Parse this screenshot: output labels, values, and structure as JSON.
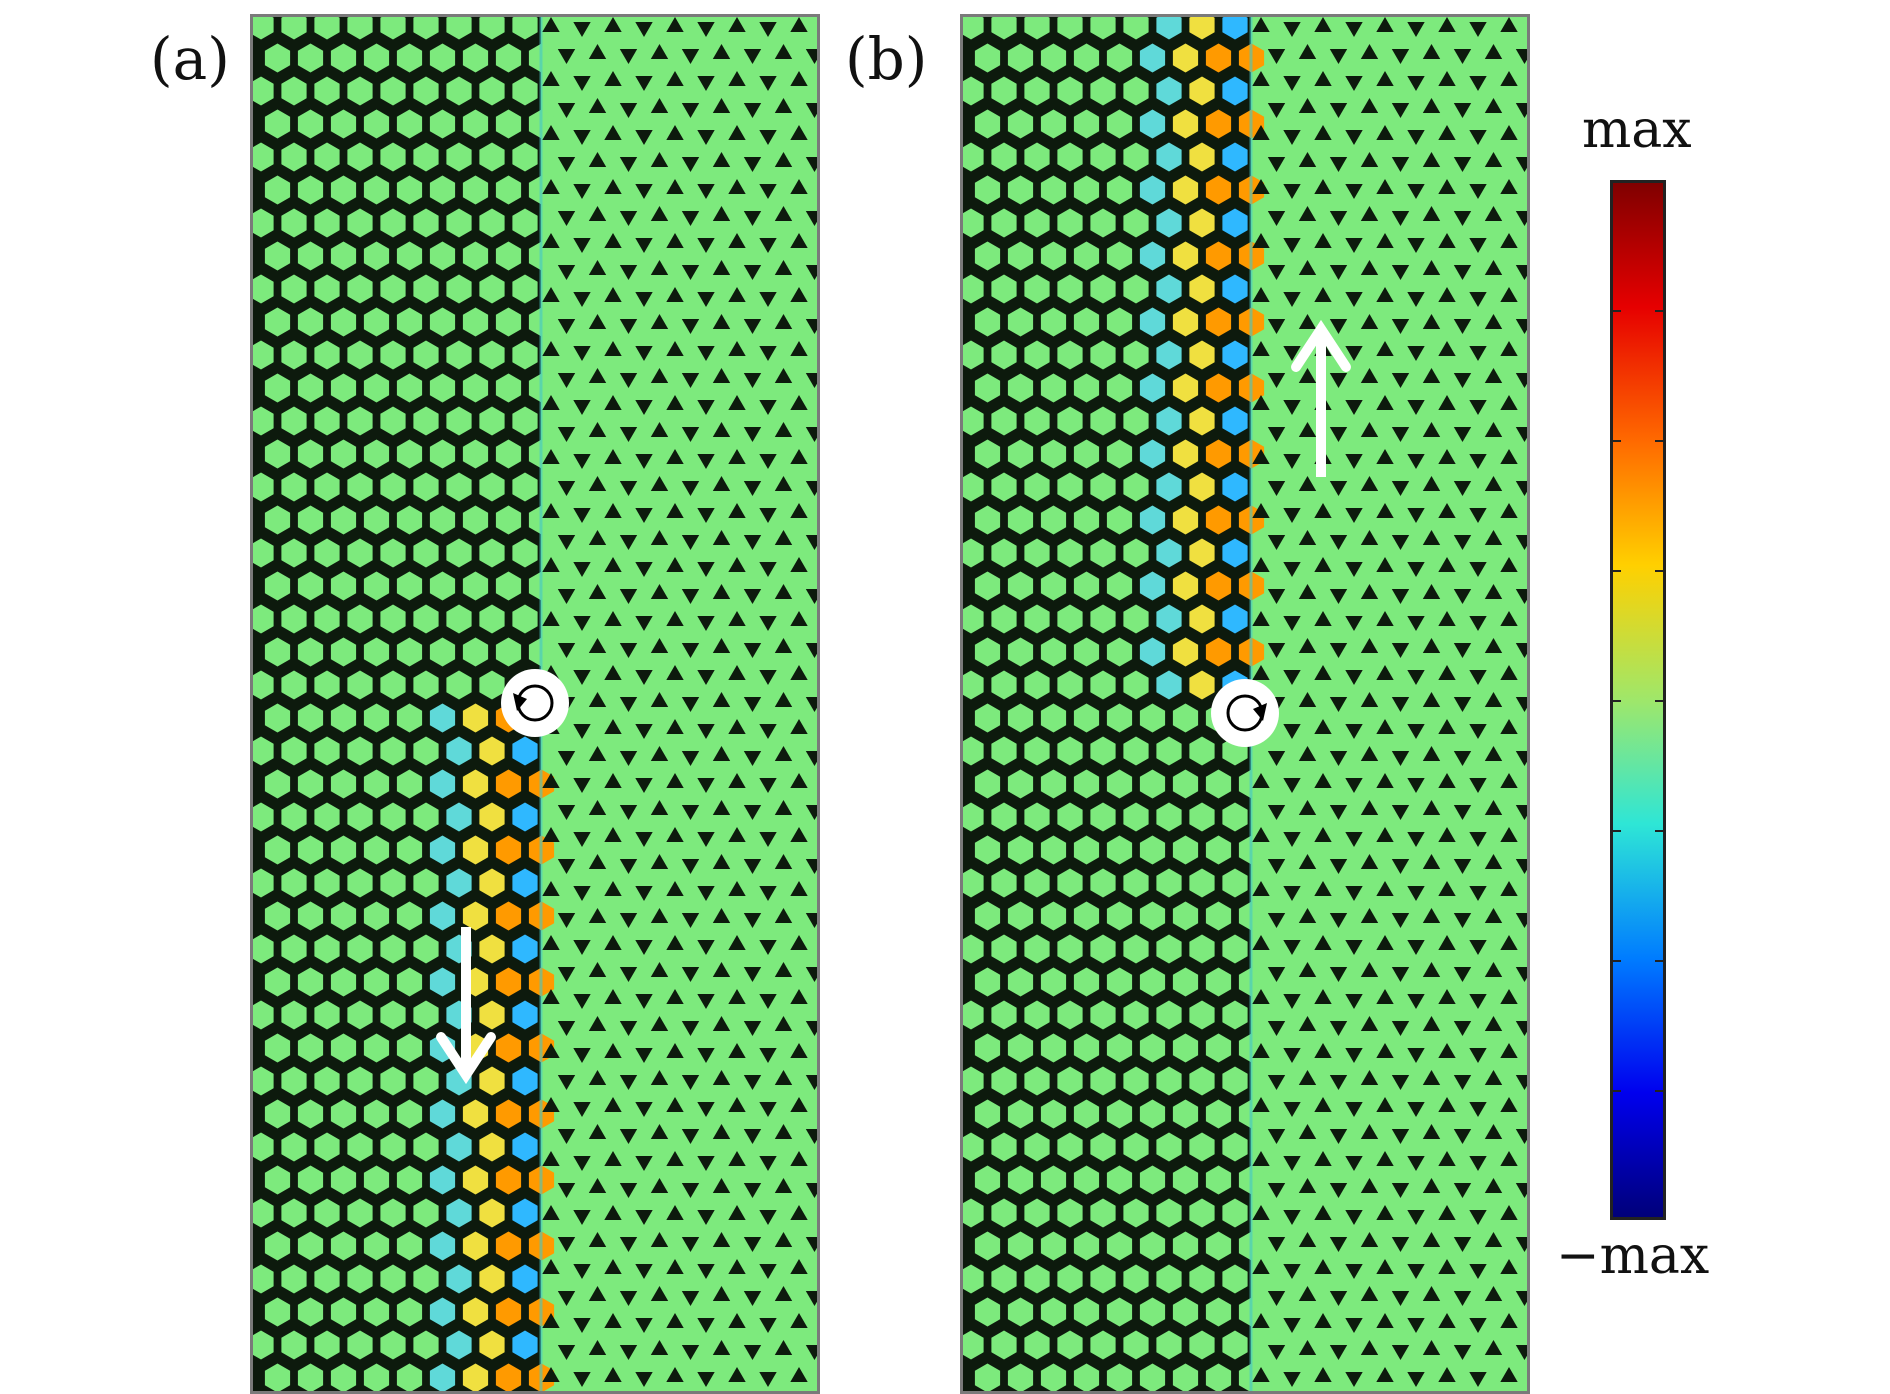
{
  "panels": [
    {
      "label": "(a)",
      "arrow_direction": "down",
      "source_rotation": "counterclockwise"
    },
    {
      "label": "(b)",
      "arrow_direction": "up",
      "source_rotation": "clockwise"
    }
  ],
  "colorbar": {
    "max_label": "max",
    "min_label": "−max",
    "colors": [
      "#800000",
      "#e60000",
      "#ff6a00",
      "#ffd000",
      "#9fe76a",
      "#2ee6d6",
      "#007cff",
      "#0000ee",
      "#00007a"
    ]
  },
  "colors": {
    "background_field": "#7dea7d",
    "hole_dark": "#0d1a0d",
    "arrow": "#ffffff"
  }
}
